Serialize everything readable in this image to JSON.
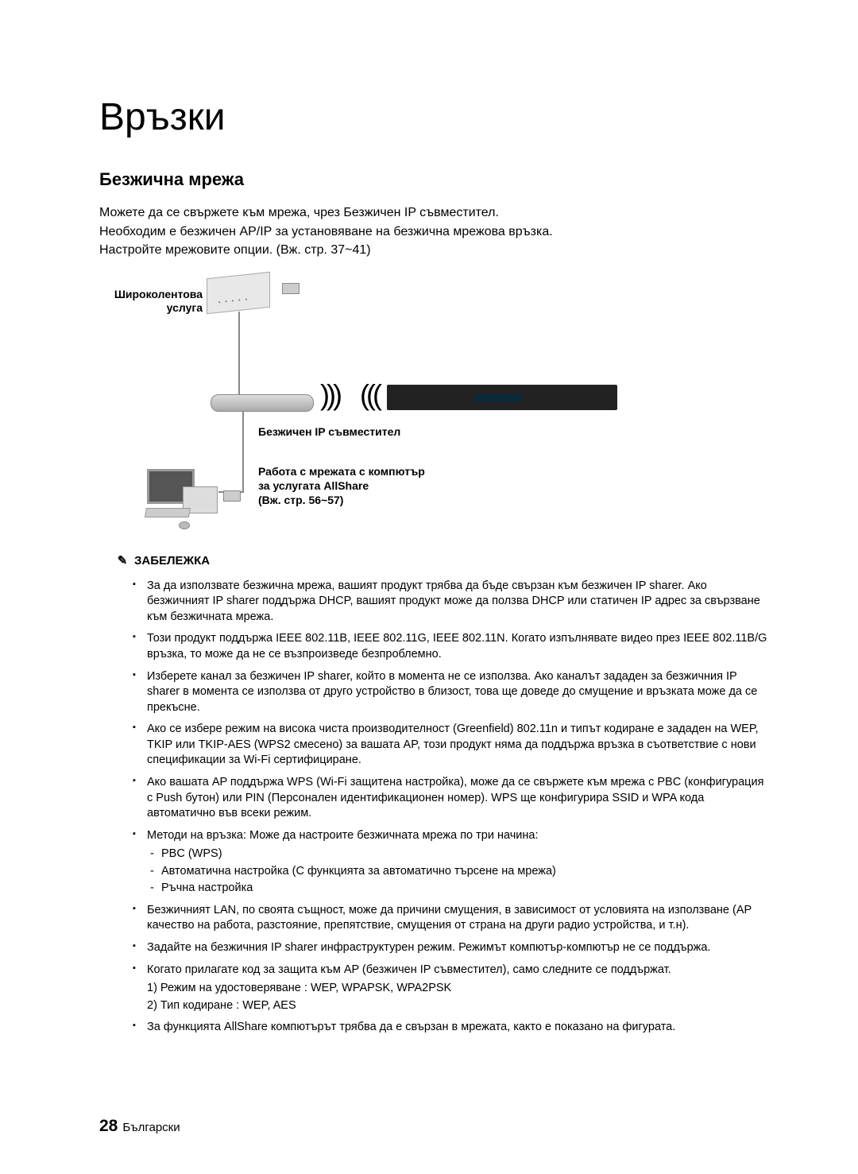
{
  "chapter_title": "Връзки",
  "section_title": "Безжична мрежа",
  "intro": {
    "line1": "Можете да се свържете към мрежа, чрез Безжичен IP съвместител.",
    "line2": "Необходим е безжичен AP/IP за установяване на безжична мрежова връзка.",
    "line3": "Настройте мрежовите опции. (Вж. стр. 37~41)"
  },
  "diagram": {
    "broadband_label_l1": "Широколентова",
    "broadband_label_l2": "услуга",
    "router_label": "Безжичен IP съвместител",
    "pc_caption_l1": "Работа с мрежата с компютър",
    "pc_caption_l2": "за услугата AllShare",
    "pc_caption_l3": "(Вж. стр. 56~57)"
  },
  "note_heading": "ЗАБЕЛЕЖКА",
  "notes": [
    "За да използвате безжична мрежа, вашият продукт трябва да бъде свързан към безжичен IP sharer. Ако безжичният IP sharer поддържа DHCP, вашият продукт може да ползва DHCP или статичен IP адрес за свързване към безжичната мрежа.",
    "Този продукт поддържа IEEE 802.11B, IEEE 802.11G, IEEE 802.11N. Когато изпълнявате видео през IEEE 802.11B/G връзка, то може да не се възпроизведе безпроблемно.",
    "Изберете канал за безжичен IP sharer, който в момента не се използва. Ако каналът зададен за безжичния IP sharer в момента се използва от друго устройство в близост, това ще доведе до смущение и връзката може да се прекъсне.",
    "Ако се избере режим на висока чиста производителност (Greenfield) 802.11n и типът кодиране е зададен на WEP, TKIP или TKIP-AES (WPS2 смесено) за вашата AP, този продукт няма да поддържа връзка в съответствие с нови спецификации за Wi-Fi сертифициране.",
    "Ако вашата AP поддържа WPS (Wi-Fi защитена настройка), може да се свържете към мрежа с PBC (конфигурация с Push бутон) или PIN (Персонален идентификационен номер). WPS ще конфигурира SSID и WPA кода автоматично във всеки режим."
  ],
  "methods_intro": "Методи на връзка: Може да настроите безжичната мрежа по три начина:",
  "methods": [
    "PBC (WPS)",
    "Автоматична настройка (С функцията за автоматично търсене на мрежа)",
    "Ръчна настройка"
  ],
  "notes2": [
    "Безжичният LAN, по своята същност, може да причини смущения, в зависимост от условията на използване (AP качество на работа, разстояние, препятствие, смущения от страна на други радио устройства, и т.н).",
    "Задайте на безжичния IP sharer инфраструктурен режим. Режимът компютър-компютър не се поддържа."
  ],
  "security_intro": "Когато прилагате код за защита към AP (безжичен IP съвместител), само следните се поддържат.",
  "security_items": [
    "1) Режим на удостоверяване : WEP, WPAPSK, WPA2PSK",
    "2) Тип кодиране : WEP, AES"
  ],
  "note_last": "За функцията AllShare компютърът трябва да е свързан в мрежата, както е показано на фигурата.",
  "footer": {
    "page_num": "28",
    "lang": "Български"
  }
}
